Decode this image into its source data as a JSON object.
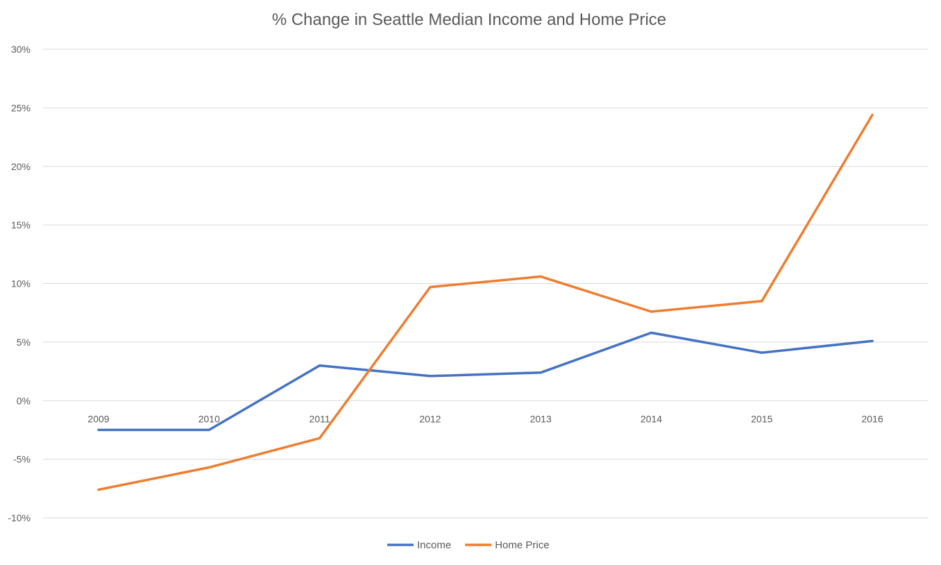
{
  "chart_data": {
    "type": "line",
    "title": "% Change in Seattle Median Income and Home Price",
    "xlabel": "",
    "ylabel": "",
    "categories": [
      "2009",
      "2010",
      "2011",
      "2012",
      "2013",
      "2014",
      "2015",
      "2016"
    ],
    "series": [
      {
        "name": "Income",
        "color": "#4472C4",
        "values": [
          -2.5,
          -2.5,
          3.0,
          2.1,
          2.4,
          5.8,
          4.1,
          5.1
        ]
      },
      {
        "name": "Home Price",
        "color": "#ED7D31",
        "values": [
          -7.6,
          -5.7,
          -3.2,
          9.7,
          10.6,
          7.6,
          8.5,
          24.4
        ]
      }
    ],
    "ylim": [
      -10,
      30
    ],
    "y_ticks": [
      {
        "value": -10,
        "label": "-10%"
      },
      {
        "value": -5,
        "label": "-5%"
      },
      {
        "value": 0,
        "label": "0%"
      },
      {
        "value": 5,
        "label": "5%"
      },
      {
        "value": 10,
        "label": "10%"
      },
      {
        "value": 15,
        "label": "15%"
      },
      {
        "value": 20,
        "label": "20%"
      },
      {
        "value": 25,
        "label": "25%"
      },
      {
        "value": 30,
        "label": "30%"
      }
    ],
    "grid": true,
    "legend": "bottom-center",
    "x_labels_position": "at-zero-line"
  }
}
